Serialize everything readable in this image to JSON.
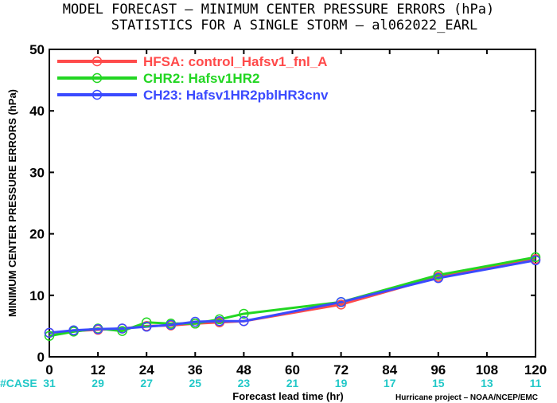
{
  "title_line1": "MODEL FORECAST – MINIMUM CENTER PRESSURE ERRORS (hPa)",
  "title_line2": "STATISTICS FOR A SINGLE STORM – al062022_EARL",
  "credit": "Hurricane project – NOAA/NCEP/EMC",
  "case_label": "#CASE",
  "case_counts": [
    31,
    29,
    27,
    25,
    23,
    21,
    19,
    17,
    15,
    13,
    11
  ],
  "case_hours": [
    0,
    12,
    24,
    36,
    48,
    60,
    72,
    84,
    96,
    108,
    120
  ],
  "colors": {
    "case": "#22c8c8"
  },
  "chart_data": {
    "type": "line",
    "title": "MODEL FORECAST – MINIMUM CENTER PRESSURE ERRORS (hPa)",
    "subtitle": "STATISTICS FOR A SINGLE STORM – al062022_EARL",
    "xlabel": "Forecast lead time (hr)",
    "ylabel": "MINIMUM CENTER PRESSURE ERRORS (hPa)",
    "xlim": [
      0,
      120
    ],
    "ylim": [
      0,
      50
    ],
    "xticks": [
      0,
      12,
      24,
      36,
      48,
      60,
      72,
      84,
      96,
      108,
      120
    ],
    "yticks": [
      0,
      10,
      20,
      30,
      40,
      50
    ],
    "grid": false,
    "legend_position": "top-left",
    "series": [
      {
        "name": "HFSA: control_Hafsv1_fnl_A",
        "color": "#ff4a4a",
        "x": [
          0,
          6,
          12,
          18,
          24,
          30,
          36,
          42,
          48,
          72,
          96,
          120
        ],
        "y": [
          3.9,
          4.2,
          4.4,
          4.6,
          5.0,
          5.1,
          5.4,
          5.6,
          5.8,
          8.5,
          13.0,
          15.9
        ]
      },
      {
        "name": "CHR2: Hafsv1HR2",
        "color": "#22d622",
        "x": [
          0,
          6,
          12,
          18,
          24,
          30,
          36,
          42,
          48,
          72,
          96,
          120
        ],
        "y": [
          3.4,
          4.1,
          4.6,
          4.2,
          5.6,
          5.4,
          5.4,
          6.1,
          7.0,
          8.9,
          13.3,
          16.2
        ]
      },
      {
        "name": "CH23: Hafsv1HR2pblHR3cnv",
        "color": "#3a4aff",
        "x": [
          0,
          6,
          12,
          18,
          24,
          30,
          36,
          42,
          48,
          72,
          96,
          120
        ],
        "y": [
          3.9,
          4.3,
          4.5,
          4.6,
          4.9,
          5.2,
          5.7,
          5.8,
          5.8,
          8.9,
          12.8,
          15.7
        ]
      }
    ]
  }
}
